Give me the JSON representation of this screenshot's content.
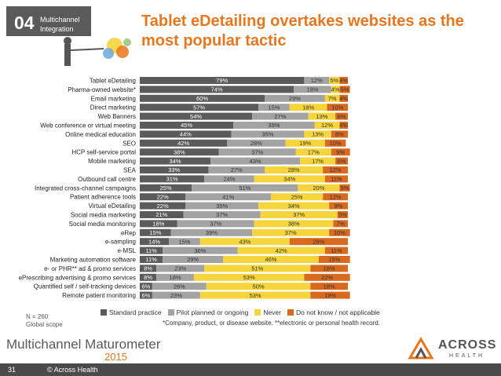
{
  "header": {
    "section_number": "04",
    "section_name_line1": "Multichannel",
    "section_name_line2": "Integration",
    "title": "Tablet eDetailing overtakes websites as the most popular tactic"
  },
  "colors": {
    "standard": "#5b5b5b",
    "pilot": "#a3a3a3",
    "never": "#f5d53b",
    "dontknow": "#d9691f",
    "accent": "#e8761f"
  },
  "chart_data": {
    "type": "bar",
    "orientation": "horizontal",
    "stacked": true,
    "percent": true,
    "categories": [
      "Tablet eDetailing",
      "Pharma-owned website*",
      "Email marketing",
      "Direct marketing",
      "Web Banners",
      "Web conference or virtual meeting",
      "Online medical education",
      "SEO",
      "HCP self-service portal",
      "Mobile marketing",
      "SEA",
      "Outbound call centre",
      "Integrated cross-channel campaigns",
      "Patient adherence tools",
      "Virtual eDetailing",
      "Social media marketing",
      "Social media monitoring",
      "eRep",
      "e-sampling",
      "e-MSL",
      "Marketing automation software",
      "e- or PHR** ad & promo services",
      "ePrescribing advertising & promo services",
      "Quantified self / self-tracking devices",
      "Remote patient monitoring"
    ],
    "series": [
      {
        "name": "Standard practice",
        "values": [
          79,
          74,
          60,
          57,
          54,
          45,
          44,
          42,
          38,
          34,
          33,
          31,
          25,
          22,
          22,
          21,
          18,
          15,
          14,
          11,
          11,
          8,
          8,
          6,
          6
        ]
      },
      {
        "name": "Pilot planned or ongoing",
        "values": [
          12,
          18,
          29,
          15,
          27,
          39,
          35,
          28,
          37,
          43,
          27,
          24,
          51,
          41,
          35,
          37,
          37,
          39,
          15,
          36,
          29,
          23,
          18,
          26,
          23
        ]
      },
      {
        "name": "Never",
        "values": [
          5,
          4,
          7,
          18,
          13,
          12,
          13,
          19,
          17,
          17,
          28,
          34,
          20,
          25,
          34,
          37,
          38,
          37,
          43,
          42,
          46,
          51,
          53,
          50,
          53
        ]
      },
      {
        "name": "Do not know / not applicable",
        "values": [
          4,
          5,
          4,
          10,
          6,
          4,
          8,
          10,
          9,
          6,
          12,
          11,
          5,
          12,
          9,
          5,
          7,
          10,
          28,
          11,
          15,
          18,
          22,
          18,
          19
        ]
      }
    ],
    "value_labels": [
      [
        "79%",
        "12%",
        "5%",
        "4%"
      ],
      [
        "74%",
        "18%",
        "4%",
        "5%"
      ],
      [
        "60%",
        "29%",
        "7%",
        "4%"
      ],
      [
        "57%",
        "15%",
        "18%",
        "10%"
      ],
      [
        "54%",
        "27%",
        "13%",
        "6%"
      ],
      [
        "45%",
        "39%",
        "12%",
        "4%"
      ],
      [
        "44%",
        "35%",
        "13%",
        "8%"
      ],
      [
        "42%",
        "28%",
        "19%",
        "10%"
      ],
      [
        "38%",
        "37%",
        "17%",
        "9%"
      ],
      [
        "34%",
        "43%",
        "17%",
        "6%"
      ],
      [
        "33%",
        "27%",
        "28%",
        "12%"
      ],
      [
        "31%",
        "24%",
        "34%",
        "11%"
      ],
      [
        "25%",
        "51%",
        "20%",
        "5%"
      ],
      [
        "22%",
        "41%",
        "25%",
        "12%"
      ],
      [
        "22%",
        "35%",
        "34%",
        "9%"
      ],
      [
        "21%",
        "37%",
        "37%",
        "5%"
      ],
      [
        "18%",
        "37%",
        "38%",
        "7%"
      ],
      [
        "15%",
        "39%",
        "37%",
        "10%"
      ],
      [
        "14%",
        "15%",
        "43%",
        "28%"
      ],
      [
        "11%",
        "36%",
        "42%",
        "11%"
      ],
      [
        "11%",
        "29%",
        "46%",
        "15%"
      ],
      [
        "8%",
        "23%",
        "51%",
        "18%"
      ],
      [
        "8%",
        "18%",
        "53%",
        "22%"
      ],
      [
        "6%",
        "26%",
        "50%",
        "18%"
      ],
      [
        "6%",
        "23%",
        "53%",
        "19%"
      ]
    ],
    "xlim": [
      0,
      100
    ],
    "legend_position": "bottom",
    "grid": false
  },
  "notes": {
    "sample": "N = 260",
    "scope": "Global scope",
    "footnote": "*Company, product, or disease website. **electronic or personal health record."
  },
  "footer": {
    "brand_title": "Multichannel Maturometer",
    "brand_year": "2015",
    "logo_name": "ACROSS",
    "logo_sub": "HEALTH",
    "page_number": "31",
    "copyright": "© Across Health"
  }
}
